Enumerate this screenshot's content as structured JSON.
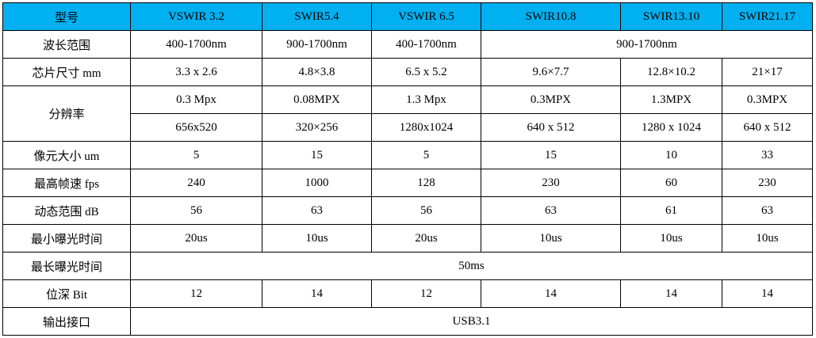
{
  "table": {
    "header": [
      "型号",
      "VSWIR 3.2",
      "SWIR5.4",
      "VSWIR 6.5",
      "SWIR10.8",
      "SWIR13.10",
      "SWIR21.17"
    ],
    "rows": [
      [
        "波长范围",
        "400-1700nm",
        "900-1700nm",
        "400-1700nm",
        "900-1700nm"
      ],
      [
        "芯片尺寸 mm",
        "3.3 x 2.6",
        "4.8×3.8",
        "6.5 x 5.2",
        "9.6×7.7",
        "12.8×10.2",
        "21×17"
      ],
      [
        "分辨率",
        "0.3 Mpx",
        "0.08MPX",
        "1.3 Mpx",
        "0.3MPX",
        "1.3MPX",
        "0.3MPX"
      ],
      [
        "656x520",
        "320×256",
        "1280x1024",
        "640 x 512",
        "1280 x 1024",
        "640 x 512"
      ],
      [
        "像元大小 um",
        "5",
        "15",
        "5",
        "15",
        "10",
        "33"
      ],
      [
        "最高帧速 fps",
        "240",
        "1000",
        "128",
        "230",
        "60",
        "230"
      ],
      [
        "动态范围 dB",
        "56",
        "63",
        "56",
        "63",
        "61",
        "63"
      ],
      [
        "最小曝光时间",
        "20us",
        "10us",
        "20us",
        "10us",
        "10us",
        "10us"
      ],
      [
        "最长曝光时间",
        "50ms"
      ],
      [
        "位深 Bit",
        "12",
        "14",
        "12",
        "14",
        "14",
        "14"
      ],
      [
        "输出接口",
        "USB3.1"
      ]
    ]
  }
}
